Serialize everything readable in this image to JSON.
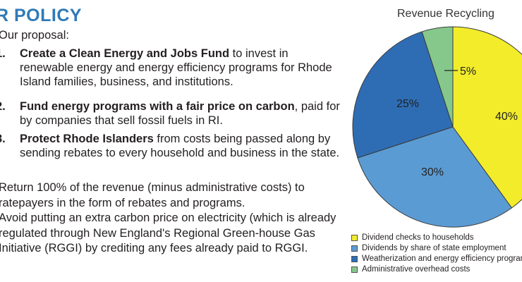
{
  "text": {
    "heading": "R POLICY",
    "intro": "Our proposal:",
    "items": [
      {
        "number": "1.",
        "bold": "Create a Clean Energy and Jobs Fund",
        "rest": " to invest in renewable energy and energy efficiency programs for Rhode Island families, business, and institutions."
      },
      {
        "number": "2.",
        "bold": "Fund energy programs with a fair price on carbon",
        "rest": ", paid for by companies that sell fossil fuels in RI."
      },
      {
        "number": "3.",
        "bold": "Protect Rhode Islanders",
        "rest": " from costs being passed along by sending rebates to every household and business in the state."
      }
    ],
    "paragraph1": "Return 100% of the revenue (minus administrative costs) to ratepayers in the form of rebates and programs.",
    "paragraph2": "Avoid putting an extra carbon price on electricity (which is already regulated through New England's Regional Green-house Gas Initiative (RGGI) by crediting any fees already paid to RGGI."
  },
  "chart_data": {
    "type": "pie",
    "title": "Revenue Recycling",
    "slices": [
      {
        "label": "Dividend checks to households",
        "value": 40,
        "value_label": "40%",
        "color": "#f2ec2b"
      },
      {
        "label": "Dividends by share of state employment",
        "value": 30,
        "value_label": "30%",
        "color": "#5b9bd3"
      },
      {
        "label": "Weatherization and energy efficiency programs",
        "value": 25,
        "value_label": "25%",
        "color": "#2e6db4"
      },
      {
        "label": "Administrative overhead costs",
        "value": 5,
        "value_label": "5%",
        "color": "#86c88c"
      }
    ],
    "start": "12 o'clock, clockwise",
    "legend_position": "bottom"
  }
}
